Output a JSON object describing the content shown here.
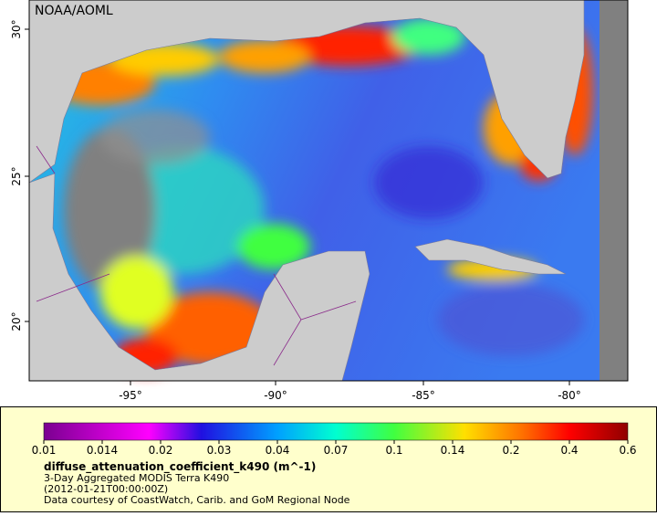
{
  "map": {
    "attribution": "NOAA/AOML",
    "lat_ticks": [
      "20°",
      "25°",
      "30°"
    ],
    "lon_ticks": [
      "-95°",
      "-90°",
      "-85°",
      "-80°"
    ]
  },
  "legend": {
    "colorbar_ticks": [
      "0.01",
      "0.014",
      "0.02",
      "0.03",
      "0.04",
      "0.07",
      "0.1",
      "0.14",
      "0.2",
      "0.4",
      "0.6"
    ],
    "variable": "diffuse_attenuation_coefficient_k490 (m^-1)",
    "description": "3-Day Aggregated MODIS Terra K490",
    "time": "(2012-01-21T00:00:00Z)",
    "credit": "Data courtesy of CoastWatch, Carib. and GoM Regional Node"
  }
}
